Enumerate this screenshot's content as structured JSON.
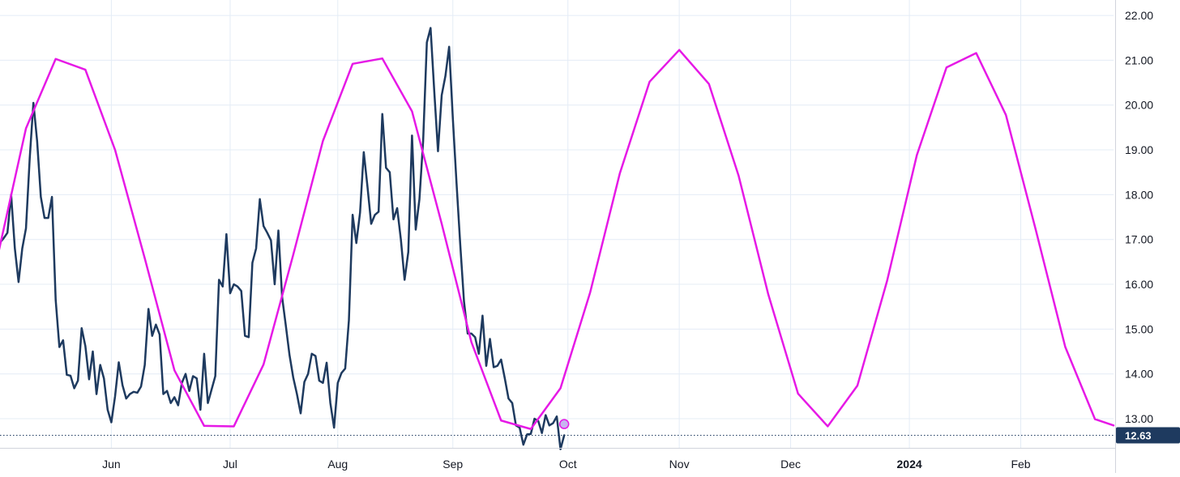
{
  "chart_data": {
    "type": "line",
    "title": "",
    "xlabel": "",
    "ylabel": "",
    "ylim": [
      12.35,
      22.2
    ],
    "xlim": [
      "2023-05-02",
      "2024-02-26"
    ],
    "grid": true,
    "y_ticks": [
      "13.00",
      "14.00",
      "15.00",
      "16.00",
      "17.00",
      "18.00",
      "19.00",
      "20.00",
      "21.00",
      "22.00"
    ],
    "x_ticks": [
      {
        "date": "2023-06-01",
        "label": "Jun",
        "bold": false
      },
      {
        "date": "2023-07-03",
        "label": "Jul",
        "bold": false
      },
      {
        "date": "2023-08-01",
        "label": "Aug",
        "bold": false
      },
      {
        "date": "2023-09-01",
        "label": "Sep",
        "bold": false
      },
      {
        "date": "2023-10-02",
        "label": "Oct",
        "bold": false
      },
      {
        "date": "2023-11-01",
        "label": "Nov",
        "bold": false
      },
      {
        "date": "2023-12-01",
        "label": "Dec",
        "bold": false
      },
      {
        "date": "2024-01-02",
        "label": "2024",
        "bold": true
      },
      {
        "date": "2024-02-01",
        "label": "Feb",
        "bold": false
      }
    ],
    "last_value_label": "12.63",
    "last_value": 12.63,
    "series": [
      {
        "color": "#1e3a5f",
        "style": "price",
        "points": [
          [
            "2023-05-02",
            16.93
          ],
          [
            "2023-05-03",
            17.03
          ],
          [
            "2023-05-04",
            17.15
          ],
          [
            "2023-05-05",
            18.0
          ],
          [
            "2023-05-06",
            16.8
          ],
          [
            "2023-05-07",
            16.05
          ],
          [
            "2023-05-08",
            16.8
          ],
          [
            "2023-05-09",
            17.25
          ],
          [
            "2023-05-10",
            18.8
          ],
          [
            "2023-05-11",
            20.05
          ],
          [
            "2023-05-12",
            19.2
          ],
          [
            "2023-05-13",
            17.95
          ],
          [
            "2023-05-14",
            17.48
          ],
          [
            "2023-05-15",
            17.48
          ],
          [
            "2023-05-16",
            17.95
          ],
          [
            "2023-05-17",
            15.65
          ],
          [
            "2023-05-18",
            14.6
          ],
          [
            "2023-05-19",
            14.75
          ],
          [
            "2023-05-20",
            13.98
          ],
          [
            "2023-05-21",
            13.96
          ],
          [
            "2023-05-22",
            13.68
          ],
          [
            "2023-05-23",
            13.85
          ],
          [
            "2023-05-24",
            15.02
          ],
          [
            "2023-05-25",
            14.62
          ],
          [
            "2023-05-26",
            13.88
          ],
          [
            "2023-05-27",
            14.5
          ],
          [
            "2023-05-28",
            13.55
          ],
          [
            "2023-05-29",
            14.2
          ],
          [
            "2023-05-30",
            13.9
          ],
          [
            "2023-05-31",
            13.2
          ],
          [
            "2023-06-01",
            12.92
          ],
          [
            "2023-06-02",
            13.5
          ],
          [
            "2023-06-03",
            14.26
          ],
          [
            "2023-06-04",
            13.75
          ],
          [
            "2023-06-05",
            13.45
          ],
          [
            "2023-06-06",
            13.55
          ],
          [
            "2023-06-07",
            13.6
          ],
          [
            "2023-06-08",
            13.58
          ],
          [
            "2023-06-09",
            13.72
          ],
          [
            "2023-06-10",
            14.2
          ],
          [
            "2023-06-11",
            15.45
          ],
          [
            "2023-06-12",
            14.85
          ],
          [
            "2023-06-13",
            15.1
          ],
          [
            "2023-06-14",
            14.88
          ],
          [
            "2023-06-15",
            13.55
          ],
          [
            "2023-06-16",
            13.62
          ],
          [
            "2023-06-17",
            13.35
          ],
          [
            "2023-06-18",
            13.48
          ],
          [
            "2023-06-19",
            13.3
          ],
          [
            "2023-06-20",
            13.8
          ],
          [
            "2023-06-21",
            14.0
          ],
          [
            "2023-06-22",
            13.62
          ],
          [
            "2023-06-23",
            13.95
          ],
          [
            "2023-06-24",
            13.9
          ],
          [
            "2023-06-25",
            13.2
          ],
          [
            "2023-06-26",
            14.45
          ],
          [
            "2023-06-27",
            13.35
          ],
          [
            "2023-06-28",
            13.65
          ],
          [
            "2023-06-29",
            13.95
          ],
          [
            "2023-06-30",
            16.1
          ],
          [
            "2023-07-01",
            15.95
          ],
          [
            "2023-07-02",
            17.12
          ],
          [
            "2023-07-03",
            15.8
          ],
          [
            "2023-07-04",
            16.0
          ],
          [
            "2023-07-05",
            15.95
          ],
          [
            "2023-07-06",
            15.85
          ],
          [
            "2023-07-07",
            14.85
          ],
          [
            "2023-07-08",
            14.82
          ],
          [
            "2023-07-09",
            16.48
          ],
          [
            "2023-07-10",
            16.8
          ],
          [
            "2023-07-11",
            17.9
          ],
          [
            "2023-07-12",
            17.3
          ],
          [
            "2023-07-13",
            17.15
          ],
          [
            "2023-07-14",
            16.98
          ],
          [
            "2023-07-15",
            16.0
          ],
          [
            "2023-07-16",
            17.2
          ],
          [
            "2023-07-17",
            15.72
          ],
          [
            "2023-07-18",
            15.08
          ],
          [
            "2023-07-19",
            14.42
          ],
          [
            "2023-07-20",
            13.92
          ],
          [
            "2023-07-21",
            13.55
          ],
          [
            "2023-07-22",
            13.12
          ],
          [
            "2023-07-23",
            13.82
          ],
          [
            "2023-07-24",
            14.0
          ],
          [
            "2023-07-25",
            14.45
          ],
          [
            "2023-07-26",
            14.4
          ],
          [
            "2023-07-27",
            13.85
          ],
          [
            "2023-07-28",
            13.8
          ],
          [
            "2023-07-29",
            14.25
          ],
          [
            "2023-07-30",
            13.35
          ],
          [
            "2023-07-31",
            12.8
          ],
          [
            "2023-08-01",
            13.8
          ],
          [
            "2023-08-02",
            14.02
          ],
          [
            "2023-08-03",
            14.12
          ],
          [
            "2023-08-04",
            15.2
          ],
          [
            "2023-08-05",
            17.55
          ],
          [
            "2023-08-06",
            16.92
          ],
          [
            "2023-08-07",
            17.6
          ],
          [
            "2023-08-08",
            18.95
          ],
          [
            "2023-08-09",
            18.18
          ],
          [
            "2023-08-10",
            17.35
          ],
          [
            "2023-08-11",
            17.55
          ],
          [
            "2023-08-12",
            17.62
          ],
          [
            "2023-08-13",
            19.8
          ],
          [
            "2023-08-14",
            18.6
          ],
          [
            "2023-08-15",
            18.5
          ],
          [
            "2023-08-16",
            17.45
          ],
          [
            "2023-08-17",
            17.7
          ],
          [
            "2023-08-18",
            17.0
          ],
          [
            "2023-08-19",
            16.1
          ],
          [
            "2023-08-20",
            16.72
          ],
          [
            "2023-08-21",
            19.32
          ],
          [
            "2023-08-22",
            17.22
          ],
          [
            "2023-08-23",
            17.9
          ],
          [
            "2023-08-24",
            19.2
          ],
          [
            "2023-08-25",
            21.4
          ],
          [
            "2023-08-26",
            21.72
          ],
          [
            "2023-08-27",
            20.3
          ],
          [
            "2023-08-28",
            18.97
          ],
          [
            "2023-08-29",
            20.22
          ],
          [
            "2023-08-30",
            20.65
          ],
          [
            "2023-08-31",
            21.3
          ],
          [
            "2023-09-01",
            19.7
          ],
          [
            "2023-09-02",
            18.25
          ],
          [
            "2023-09-03",
            16.88
          ],
          [
            "2023-09-04",
            15.62
          ],
          [
            "2023-09-05",
            14.9
          ],
          [
            "2023-09-06",
            14.9
          ],
          [
            "2023-09-07",
            14.82
          ],
          [
            "2023-09-08",
            14.45
          ],
          [
            "2023-09-09",
            15.3
          ],
          [
            "2023-09-10",
            14.18
          ],
          [
            "2023-09-11",
            14.78
          ],
          [
            "2023-09-12",
            14.15
          ],
          [
            "2023-09-13",
            14.18
          ],
          [
            "2023-09-14",
            14.32
          ],
          [
            "2023-09-15",
            13.9
          ],
          [
            "2023-09-16",
            13.45
          ],
          [
            "2023-09-17",
            13.35
          ],
          [
            "2023-09-18",
            12.85
          ],
          [
            "2023-09-19",
            12.8
          ],
          [
            "2023-09-20",
            12.42
          ],
          [
            "2023-09-21",
            12.65
          ],
          [
            "2023-09-22",
            12.66
          ],
          [
            "2023-09-23",
            13.0
          ],
          [
            "2023-09-24",
            12.95
          ],
          [
            "2023-09-25",
            12.68
          ],
          [
            "2023-09-26",
            13.08
          ],
          [
            "2023-09-27",
            12.85
          ],
          [
            "2023-09-28",
            12.9
          ],
          [
            "2023-09-29",
            13.05
          ],
          [
            "2023-09-30",
            12.32
          ],
          [
            "2023-10-01",
            12.63
          ]
        ]
      },
      {
        "color": "#e619e6",
        "style": "cycle",
        "points": [
          [
            "2023-05-01",
            16.49
          ],
          [
            "2023-05-09",
            19.48
          ],
          [
            "2023-05-17",
            21.03
          ],
          [
            "2023-05-25",
            20.79
          ],
          [
            "2023-06-02",
            19.0
          ],
          [
            "2023-06-10",
            16.58
          ],
          [
            "2023-06-18",
            14.08
          ],
          [
            "2023-06-26",
            12.84
          ],
          [
            "2023-07-04",
            12.83
          ],
          [
            "2023-07-12",
            14.21
          ],
          [
            "2023-07-20",
            16.66
          ],
          [
            "2023-07-28",
            19.2
          ],
          [
            "2023-08-05",
            20.92
          ],
          [
            "2023-08-13",
            21.04
          ],
          [
            "2023-08-21",
            19.86
          ],
          [
            "2023-08-29",
            17.35
          ],
          [
            "2023-09-06",
            14.71
          ],
          [
            "2023-09-14",
            12.96
          ],
          [
            "2023-09-22",
            12.77
          ],
          [
            "2023-09-30",
            13.68
          ],
          [
            "2023-10-08",
            15.82
          ],
          [
            "2023-10-16",
            18.48
          ],
          [
            "2023-10-24",
            20.52
          ],
          [
            "2023-11-01",
            21.23
          ],
          [
            "2023-11-09",
            20.47
          ],
          [
            "2023-11-17",
            18.42
          ],
          [
            "2023-11-25",
            15.77
          ],
          [
            "2023-12-03",
            13.56
          ],
          [
            "2023-12-11",
            12.83
          ],
          [
            "2023-12-19",
            13.74
          ],
          [
            "2023-12-27",
            16.08
          ],
          [
            "2024-01-04",
            18.88
          ],
          [
            "2024-01-12",
            20.84
          ],
          [
            "2024-01-20",
            21.16
          ],
          [
            "2024-01-28",
            19.78
          ],
          [
            "2024-02-05",
            17.23
          ],
          [
            "2024-02-13",
            14.6
          ],
          [
            "2024-02-21",
            12.99
          ],
          [
            "2024-02-26",
            12.85
          ]
        ]
      }
    ],
    "marker": {
      "date": "2023-10-01",
      "value": 12.88,
      "fill": "#c8b4f0",
      "stroke": "#e619e6"
    },
    "colors": {
      "background": "#ffffff",
      "grid": "#e4ecf6",
      "price_line": "#1e3a5f",
      "cycle_line": "#e619e6",
      "last_value_tag": "#1e3a5f",
      "dotted_line": "#1e3a5f"
    }
  }
}
